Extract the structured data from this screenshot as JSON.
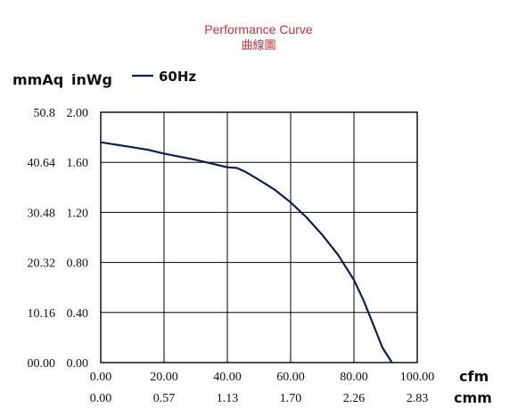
{
  "chart_data": {
    "type": "line",
    "title": "Performance Curve",
    "subtitle": "曲線圖",
    "y_unit_primary": "mmAq",
    "y_unit_secondary": "inWg",
    "x_unit_primary": "cfm",
    "x_unit_secondary": "cmm",
    "legend_position": "top-left",
    "grid": true,
    "xlim": [
      0,
      100
    ],
    "ylim": [
      0,
      2.0
    ],
    "x_ticks_cfm": [
      "0.00",
      "20.00",
      "40.00",
      "60.00",
      "80.00",
      "100.00"
    ],
    "x_ticks_cmm": [
      "0.00",
      "0.57",
      "1.13",
      "1.70",
      "2.26",
      "2.83"
    ],
    "y_ticks_inwg": [
      "0.00",
      "0.40",
      "0.80",
      "1.20",
      "1.60",
      "2.00"
    ],
    "y_ticks_mmaq": [
      "00.00",
      "10.16",
      "20.32",
      "30.48",
      "40.64",
      "50.8"
    ],
    "series": [
      {
        "name": "60Hz",
        "color": "#0d1f4f",
        "x": [
          0,
          5,
          10,
          15,
          20,
          25,
          30,
          35,
          40,
          43,
          46,
          50,
          55,
          60,
          65,
          70,
          75,
          80,
          83,
          86,
          89,
          92
        ],
        "y": [
          1.76,
          1.74,
          1.72,
          1.7,
          1.67,
          1.645,
          1.62,
          1.59,
          1.56,
          1.555,
          1.52,
          1.46,
          1.38,
          1.28,
          1.16,
          1.02,
          0.86,
          0.66,
          0.5,
          0.31,
          0.12,
          0.0
        ]
      }
    ]
  }
}
